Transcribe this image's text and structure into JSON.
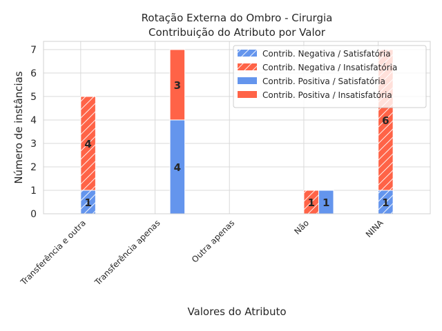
{
  "chart_data": {
    "type": "bar",
    "title": [
      "Rotação Externa do Ombro - Cirurgia",
      "Contribuição do Atributo por Valor"
    ],
    "xlabel": "Valores do Atributo",
    "ylabel": "Número de instâncias",
    "categories": [
      "Transferência e outra",
      "Transferência apenas",
      "Outra apenas",
      "Não",
      "NINA"
    ],
    "ylim": [
      0,
      7.35
    ],
    "yticks": [
      0,
      1,
      2,
      3,
      4,
      5,
      6,
      7
    ],
    "grid": true,
    "legend_position": "top-right",
    "series": [
      {
        "name": "Contrib. Negativa / Satisfatória",
        "group": "negative",
        "color": "#6495ED",
        "hatch": true,
        "values": [
          1,
          0,
          0,
          0,
          1
        ]
      },
      {
        "name": "Contrib. Negativa / Insatisfatória",
        "group": "negative",
        "color": "#FF6347",
        "hatch": true,
        "values": [
          4,
          0,
          0,
          1,
          6
        ]
      },
      {
        "name": "Contrib. Positiva / Satisfatória",
        "group": "positive",
        "color": "#6495ED",
        "hatch": false,
        "values": [
          0,
          4,
          0,
          1,
          0
        ]
      },
      {
        "name": "Contrib. Positiva / Insatisfatória",
        "group": "positive",
        "color": "#FF6347",
        "hatch": false,
        "values": [
          0,
          3,
          0,
          0,
          0
        ]
      }
    ]
  }
}
